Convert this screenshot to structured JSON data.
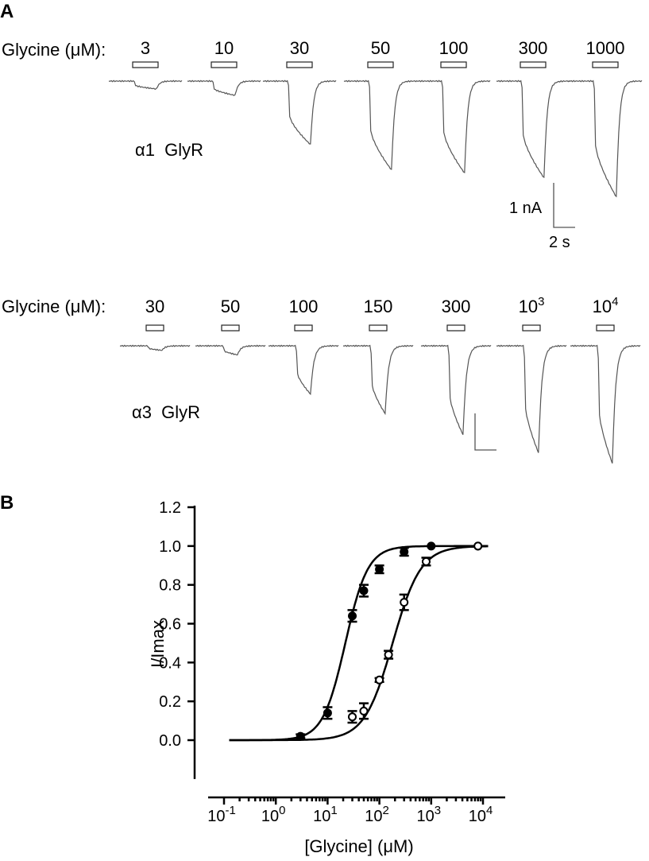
{
  "panel_a": {
    "letter": "A",
    "row1": {
      "label": "Glycine (μM):",
      "concentrations": [
        "3",
        "10",
        "30",
        "50",
        "100",
        "300",
        "1000"
      ],
      "amplitudes": [
        0.05,
        0.09,
        0.4,
        0.56,
        0.58,
        0.61,
        0.73
      ],
      "receptor_alpha": "α1",
      "receptor_name": "GlyR",
      "scale_current": "1 nA",
      "scale_time": "2 s"
    },
    "row2": {
      "label": "Glycine (μM):",
      "concentrations": [
        {
          "base": "30",
          "exp": ""
        },
        {
          "base": "50",
          "exp": ""
        },
        {
          "base": "100",
          "exp": ""
        },
        {
          "base": "150",
          "exp": ""
        },
        {
          "base": "300",
          "exp": ""
        },
        {
          "base": "10",
          "exp": "3"
        },
        {
          "base": "10",
          "exp": "4"
        }
      ],
      "amplitudes": [
        0.03,
        0.06,
        0.32,
        0.45,
        0.59,
        0.71,
        0.78
      ],
      "receptor_alpha": "α3",
      "receptor_name": "GlyR"
    }
  },
  "panel_b": {
    "letter": "B",
    "chart_data": {
      "type": "scatter",
      "xlabel": "[Glycine] (μM)",
      "ylabel": "I/Imax",
      "xscale": "log",
      "xlim": [
        0.1,
        10000
      ],
      "ylim": [
        -0.2,
        1.2
      ],
      "x_ticks": [
        {
          "base": "10",
          "exp": "-1"
        },
        {
          "base": "10",
          "exp": "0"
        },
        {
          "base": "10",
          "exp": "1"
        },
        {
          "base": "10",
          "exp": "2"
        },
        {
          "base": "10",
          "exp": "3"
        },
        {
          "base": "10",
          "exp": "4"
        }
      ],
      "y_ticks": [
        "0.0",
        "0.2",
        "0.4",
        "0.6",
        "0.8",
        "1.0",
        "1.2"
      ],
      "grid": false,
      "series": [
        {
          "marker": "filled-circle",
          "x": [
            3,
            10,
            30,
            50,
            100,
            300,
            1000,
            8000
          ],
          "y": [
            0.02,
            0.14,
            0.64,
            0.77,
            0.88,
            0.97,
            1.0,
            1.0
          ],
          "err": [
            0.01,
            0.03,
            0.03,
            0.03,
            0.02,
            0.02,
            0.0,
            0.0
          ],
          "fit": {
            "ec50": 22,
            "hill": 2.0
          }
        },
        {
          "marker": "open-circle",
          "x": [
            30,
            50,
            100,
            150,
            300,
            800,
            8000
          ],
          "y": [
            0.12,
            0.15,
            0.31,
            0.44,
            0.71,
            0.92,
            1.0
          ],
          "err": [
            0.03,
            0.04,
            0.01,
            0.02,
            0.04,
            0.02,
            0.0
          ],
          "fit": {
            "ec50": 180,
            "hill": 1.6
          }
        }
      ]
    }
  }
}
